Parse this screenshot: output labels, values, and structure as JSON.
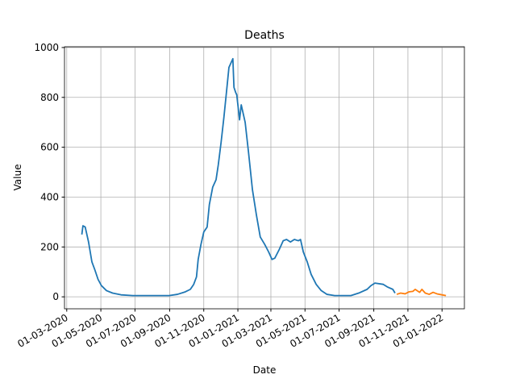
{
  "chart_data": {
    "type": "line",
    "title": "Deaths",
    "x_label": "Date",
    "y_label": "Value",
    "grid": true,
    "xlim": [
      "2020-02-26",
      "2022-02-10"
    ],
    "xticks": [
      {
        "value": "2020-03-01",
        "label": "01-03-2020"
      },
      {
        "value": "2020-05-01",
        "label": "01-05-2020"
      },
      {
        "value": "2020-07-01",
        "label": "01-07-2020"
      },
      {
        "value": "2020-09-01",
        "label": "01-09-2020"
      },
      {
        "value": "2020-11-01",
        "label": "01-11-2020"
      },
      {
        "value": "2021-01-01",
        "label": "01-01-2021"
      },
      {
        "value": "2021-03-01",
        "label": "01-03-2021"
      },
      {
        "value": "2021-05-01",
        "label": "01-05-2021"
      },
      {
        "value": "2021-07-01",
        "label": "01-07-2021"
      },
      {
        "value": "2021-09-01",
        "label": "01-09-2021"
      },
      {
        "value": "2021-11-01",
        "label": "01-11-2021"
      },
      {
        "value": "2022-01-01",
        "label": "01-01-2022"
      }
    ],
    "ylim": [
      -48,
      1003
    ],
    "yticks": [
      0,
      200,
      400,
      600,
      800,
      1000
    ],
    "series": [
      {
        "color": "#1f77b4",
        "x": [
          "2020-03-28",
          "2020-03-30",
          "2020-04-03",
          "2020-04-09",
          "2020-04-15",
          "2020-04-20",
          "2020-04-26",
          "2020-05-02",
          "2020-05-11",
          "2020-05-22",
          "2020-06-06",
          "2020-06-27",
          "2020-07-19",
          "2020-08-10",
          "2020-08-31",
          "2020-09-15",
          "2020-09-29",
          "2020-10-08",
          "2020-10-14",
          "2020-10-19",
          "2020-10-22",
          "2020-10-27",
          "2020-11-01",
          "2020-11-07",
          "2020-11-11",
          "2020-11-17",
          "2020-11-23",
          "2020-11-27",
          "2020-12-02",
          "2020-12-07",
          "2020-12-12",
          "2020-12-16",
          "2020-12-20",
          "2020-12-23",
          "2020-12-25",
          "2020-12-28",
          "2020-12-30",
          "2021-01-04",
          "2021-01-07",
          "2021-01-10",
          "2021-01-14",
          "2021-01-20",
          "2021-01-27",
          "2021-02-03",
          "2021-02-10",
          "2021-02-18",
          "2021-02-25",
          "2021-03-03",
          "2021-03-08",
          "2021-03-16",
          "2021-03-23",
          "2021-03-29",
          "2021-04-05",
          "2021-04-12",
          "2021-04-19",
          "2021-04-23",
          "2021-04-28",
          "2021-05-05",
          "2021-05-12",
          "2021-05-21",
          "2021-05-30",
          "2021-06-09",
          "2021-06-23",
          "2021-07-08",
          "2021-07-22",
          "2021-08-05",
          "2021-08-20",
          "2021-08-27",
          "2021-09-03",
          "2021-09-18",
          "2021-09-25",
          "2021-10-05",
          "2021-10-09"
        ],
        "values": [
          250,
          285,
          280,
          220,
          140,
          110,
          70,
          45,
          25,
          15,
          8,
          5,
          5,
          5,
          5,
          10,
          20,
          30,
          50,
          80,
          150,
          210,
          260,
          280,
          370,
          440,
          470,
          530,
          620,
          720,
          830,
          920,
          940,
          955,
          840,
          820,
          810,
          710,
          770,
          740,
          700,
          580,
          430,
          330,
          240,
          210,
          180,
          150,
          155,
          190,
          225,
          230,
          220,
          230,
          225,
          230,
          180,
          140,
          90,
          50,
          25,
          10,
          5,
          5,
          5,
          15,
          30,
          45,
          55,
          50,
          40,
          30,
          15
        ]
      },
      {
        "color": "#ff7f0e",
        "x": [
          "2021-10-12",
          "2021-10-19",
          "2021-10-27",
          "2021-11-03",
          "2021-11-10",
          "2021-11-14",
          "2021-11-22",
          "2021-11-26",
          "2021-12-02",
          "2021-12-09",
          "2021-12-16",
          "2021-12-23",
          "2022-01-01",
          "2022-01-08"
        ],
        "values": [
          10,
          15,
          12,
          20,
          22,
          30,
          18,
          30,
          15,
          10,
          18,
          12,
          8,
          5
        ]
      }
    ]
  }
}
